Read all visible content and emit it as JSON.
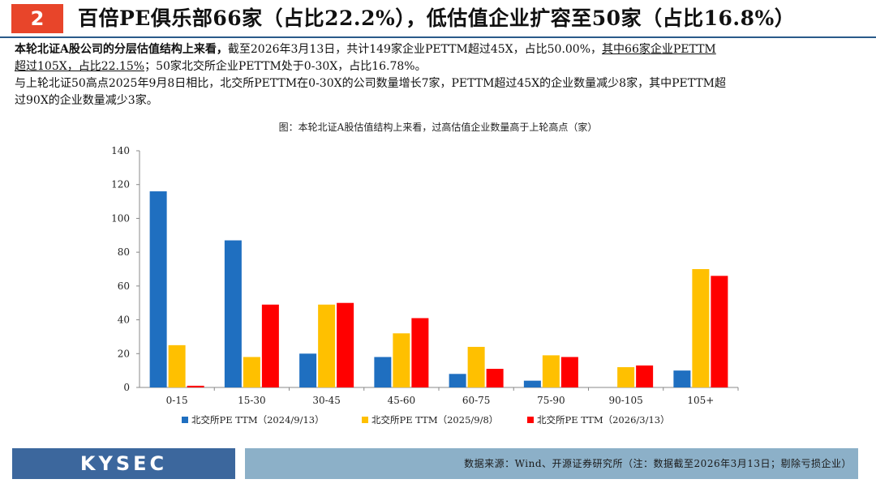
{
  "header": {
    "section_number": "2",
    "title": "百倍PE俱乐部66家（占比22.2%），低估值企业扩容至50家（占比16.8%）"
  },
  "body": {
    "p1_bold": "本轮北证A股公司的分层估值结构上来看，",
    "p1_text": "截至2026年3月13日，共计149家企业PETTM超过45X，占比50.00%，",
    "p1_underline": "其中66家企业PETTM",
    "p1_underline2": "超过105X，占比22.15%",
    "p1_rest": "；50家北交所企业PETTM处于0-30X，占比16.78%。",
    "p2_line1": "与上轮北证50高点2025年9月8日相比，北交所PETTM在0-30X的公司数量增长7家，PETTM超过45X的企业数量减少8家，其中PETTM超",
    "p2_line2": "过90X的企业数量减少3家。"
  },
  "chart_title": "图：本轮北证A股估值结构上来看，过高估值企业数量高于上轮高点（家）",
  "chart_data": {
    "type": "bar",
    "categories": [
      "0-15",
      "15-30",
      "30-45",
      "45-60",
      "60-75",
      "75-90",
      "90-105",
      "105+"
    ],
    "series": [
      {
        "name": "北交所PE TTM（2024/9/13）",
        "color": "#1f6fc0",
        "values": [
          116,
          87,
          20,
          18,
          8,
          4,
          0,
          10
        ]
      },
      {
        "name": "北交所PE TTM（2025/9/8）",
        "color": "#ffc000",
        "values": [
          25,
          18,
          49,
          32,
          24,
          19,
          12,
          70
        ]
      },
      {
        "name": "北交所PE TTM（2026/3/13）",
        "color": "#ff0000",
        "values": [
          1,
          49,
          50,
          41,
          11,
          18,
          13,
          66
        ]
      }
    ],
    "ylim": [
      0,
      140
    ],
    "yticks": [
      0,
      20,
      40,
      60,
      80,
      100,
      120,
      140
    ],
    "grid": false,
    "legend_position": "bottom"
  },
  "footer": {
    "logo": "KYSEC",
    "source": "数据来源：Wind、开源证券研究所（注：数据截至2026年3月13日；剔除亏损企业）"
  }
}
